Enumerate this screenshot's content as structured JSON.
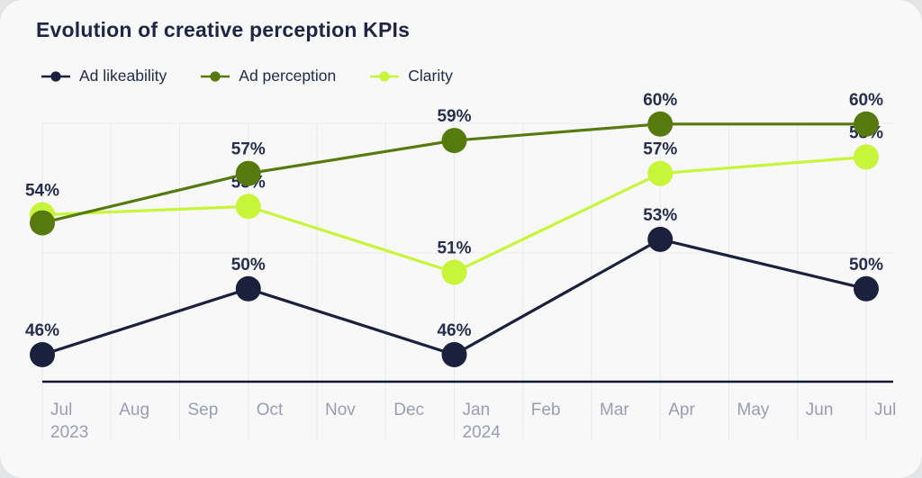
{
  "title": "Evolution of creative perception KPIs",
  "legend": [
    {
      "label": "Ad likeability",
      "color": "#1b213d",
      "marker": "line-dot-icon"
    },
    {
      "label": "Ad perception",
      "color": "#567a0d",
      "marker": "line-dot-icon"
    },
    {
      "label": "Clarity",
      "color": "#c6f53a",
      "marker": "line-dot-icon"
    }
  ],
  "colors": {
    "card_background": "#f8f8f9",
    "title_text": "#1f2546",
    "value_label_text": "#272d4f",
    "axis_line": "#11182f",
    "tick_label_text": "#9a9db2",
    "gridline": "#e8e9ee",
    "series_ad_likeability": "#1b213d",
    "series_ad_perception": "#567a0d",
    "series_clarity": "#c6f53a"
  },
  "chart_data": {
    "type": "line",
    "title": "Evolution of creative perception KPIs",
    "xlabel": "",
    "ylabel": "",
    "ylim": [
      44,
      62
    ],
    "grid": "vertical monthly gridlines; faint horizontal lines at top and middle; dark bottom axis",
    "legend_position": "top-left",
    "label_format": "{value}%",
    "x_ticks": [
      {
        "label": "Jul",
        "sublabel": "2023"
      },
      {
        "label": "Aug"
      },
      {
        "label": "Sep"
      },
      {
        "label": "Oct"
      },
      {
        "label": "Nov"
      },
      {
        "label": "Dec"
      },
      {
        "label": "Jan",
        "sublabel": "2024"
      },
      {
        "label": "Feb"
      },
      {
        "label": "Mar"
      },
      {
        "label": "Apr"
      },
      {
        "label": "May"
      },
      {
        "label": "Jun"
      },
      {
        "label": "Jul"
      }
    ],
    "series": [
      {
        "name": "Ad likeability",
        "color": "#1b213d",
        "points": [
          {
            "x": "Jul 2023",
            "tick_index": 0,
            "value": 46
          },
          {
            "x": "Oct 2023",
            "tick_index": 3,
            "value": 50
          },
          {
            "x": "Jan 2024",
            "tick_index": 6,
            "value": 46
          },
          {
            "x": "Apr 2024",
            "tick_index": 9,
            "value": 53
          },
          {
            "x": "Jul 2024",
            "tick_index": 12,
            "value": 50
          }
        ]
      },
      {
        "name": "Ad perception",
        "color": "#567a0d",
        "points": [
          {
            "x": "Jul 2023",
            "tick_index": 0,
            "value": 54
          },
          {
            "x": "Oct 2023",
            "tick_index": 3,
            "value": 57
          },
          {
            "x": "Jan 2024",
            "tick_index": 6,
            "value": 59
          },
          {
            "x": "Apr 2024",
            "tick_index": 9,
            "value": 60
          },
          {
            "x": "Jul 2024",
            "tick_index": 12,
            "value": 60
          }
        ]
      },
      {
        "name": "Clarity",
        "color": "#c6f53a",
        "points": [
          {
            "x": "Jul 2023",
            "tick_index": 0,
            "value": 54
          },
          {
            "x": "Oct 2023",
            "tick_index": 3,
            "value": 55
          },
          {
            "x": "Jan 2024",
            "tick_index": 6,
            "value": 51
          },
          {
            "x": "Apr 2024",
            "tick_index": 9,
            "value": 57
          },
          {
            "x": "Jul 2024",
            "tick_index": 12,
            "value": 58
          }
        ]
      }
    ]
  }
}
